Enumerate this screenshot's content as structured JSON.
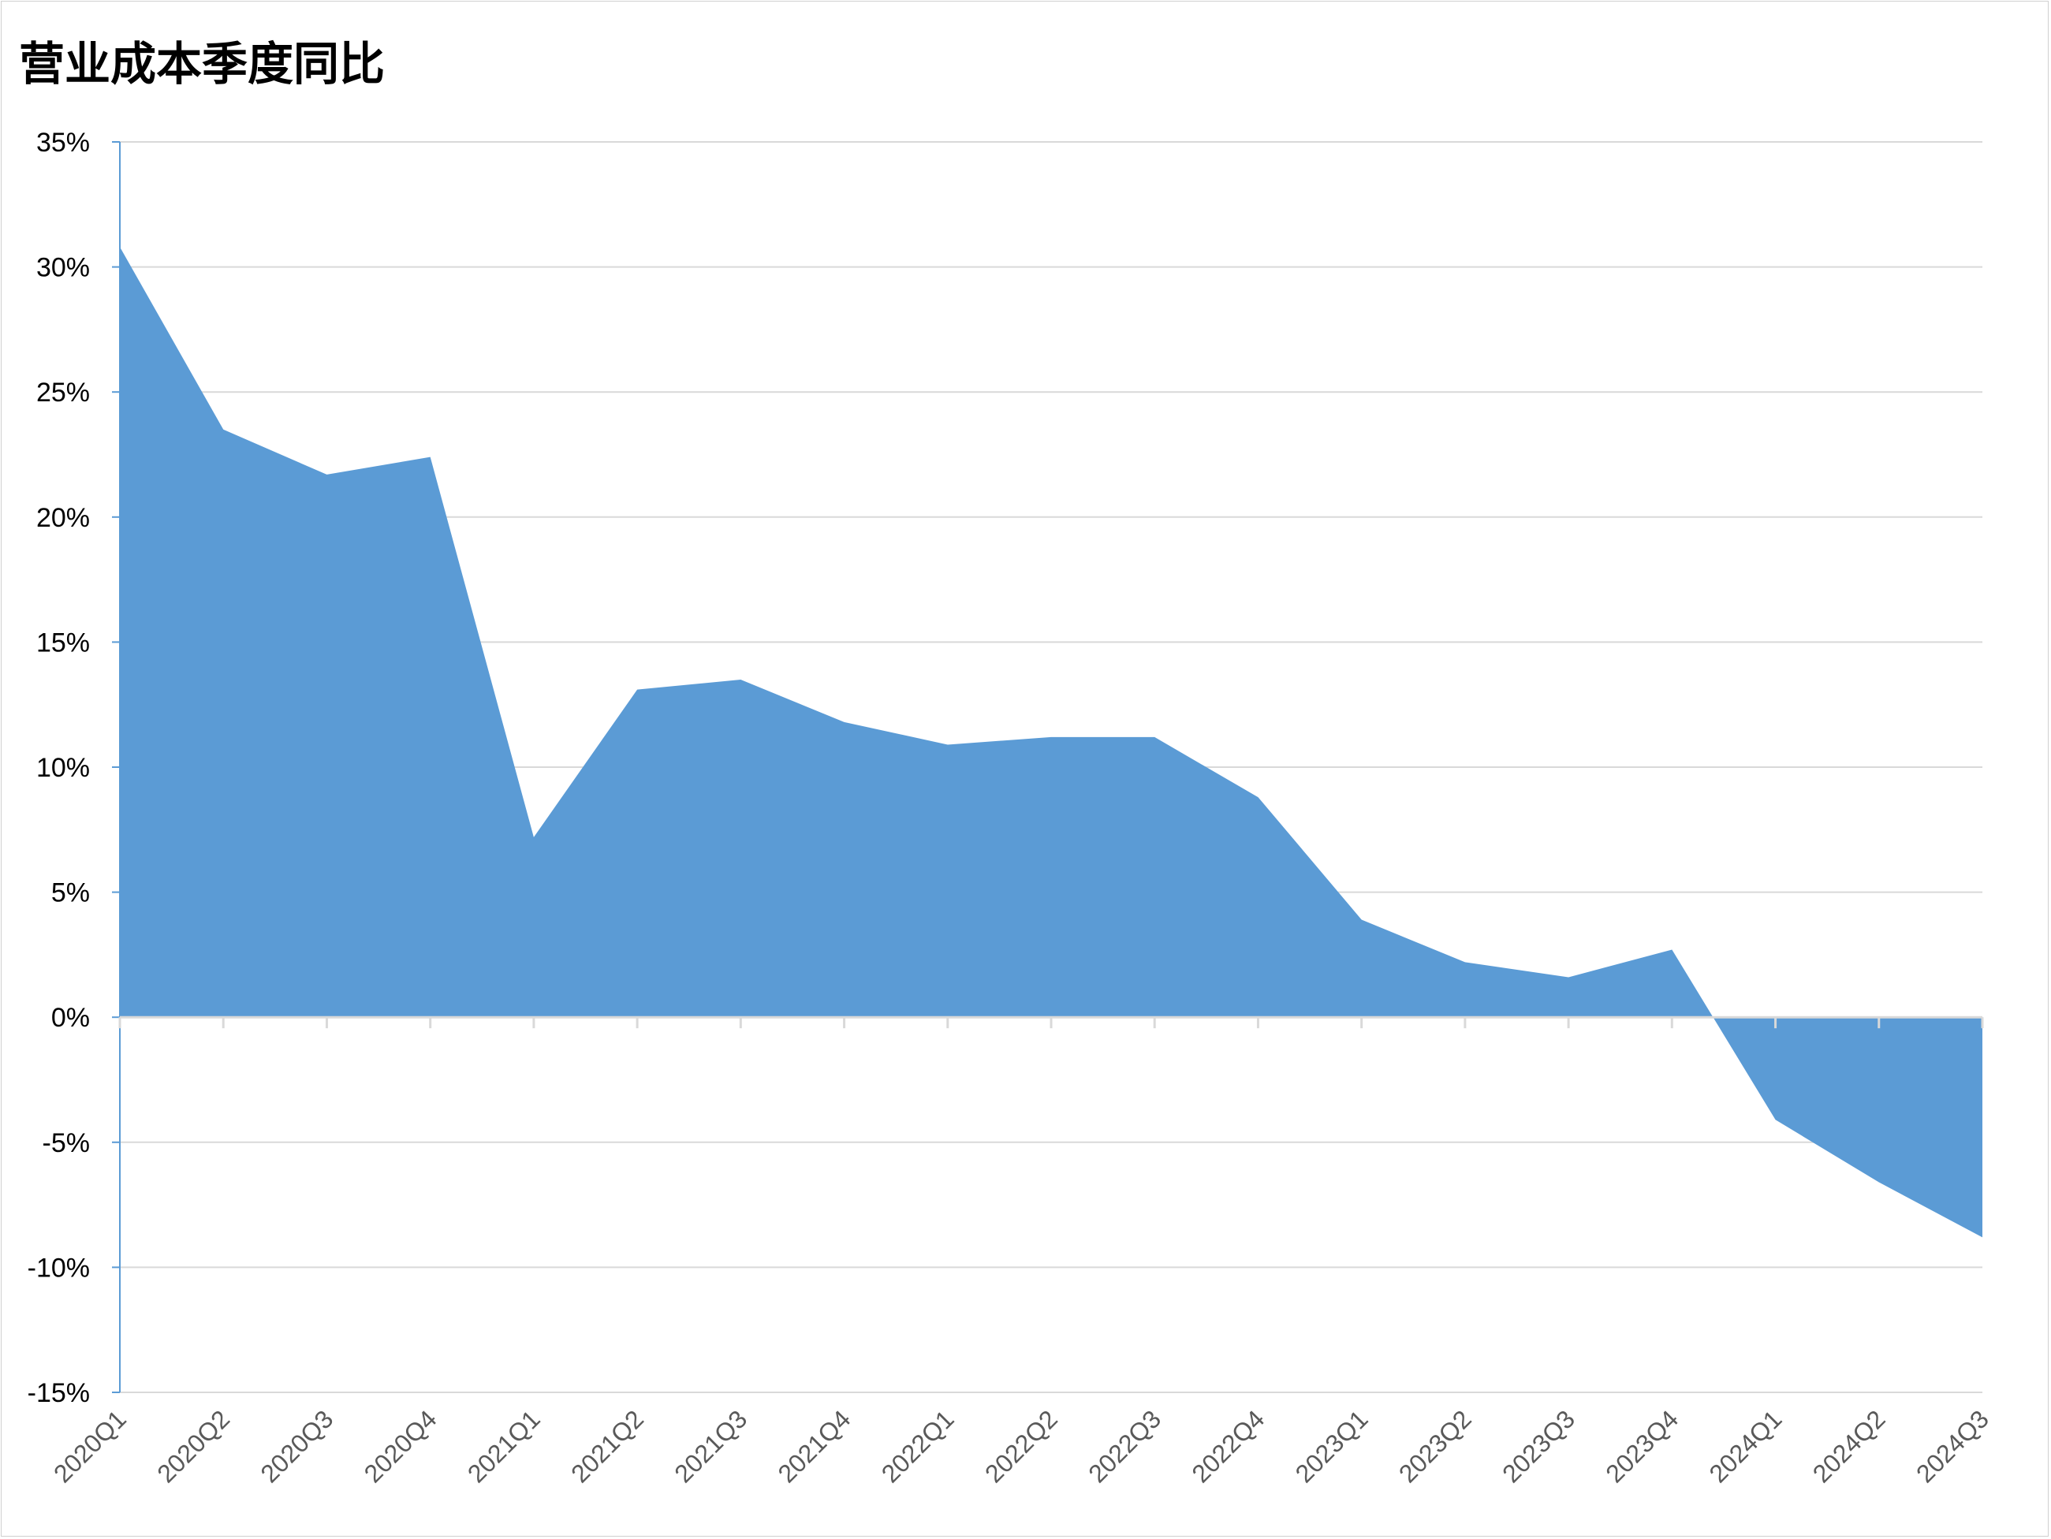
{
  "chart_data": {
    "type": "area",
    "title": "营业成本季度同比",
    "categories": [
      "2020Q1",
      "2020Q2",
      "2020Q3",
      "2020Q4",
      "2021Q1",
      "2021Q2",
      "2021Q3",
      "2021Q4",
      "2022Q1",
      "2022Q2",
      "2022Q3",
      "2022Q4",
      "2023Q1",
      "2023Q2",
      "2023Q3",
      "2023Q4",
      "2024Q1",
      "2024Q2",
      "2024Q3"
    ],
    "values": [
      30.8,
      23.5,
      21.7,
      22.4,
      7.2,
      13.1,
      13.5,
      11.8,
      10.9,
      11.2,
      11.2,
      8.8,
      3.9,
      2.2,
      1.6,
      2.7,
      -4.1,
      -6.6,
      -8.8
    ],
    "ylim": [
      -15,
      35
    ],
    "yticks": [
      "-15%",
      "-10%",
      "-5%",
      "0%",
      "5%",
      "10%",
      "15%",
      "20%",
      "25%",
      "30%",
      "35%"
    ],
    "ytick_values": [
      -15,
      -10,
      -5,
      0,
      5,
      10,
      15,
      20,
      25,
      30,
      35
    ],
    "grid": true,
    "fill_color": "#5B9BD5",
    "gridline_color": "#D9D9D9",
    "axis_color": "#5B9BD5"
  }
}
